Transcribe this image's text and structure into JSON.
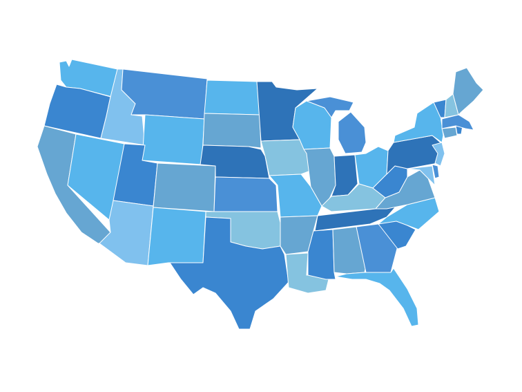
{
  "map": {
    "palette": {
      "navy": "#2e73b8",
      "blue": "#3a86d0",
      "mid": "#4a90d6",
      "sky": "#57b5ec",
      "light": "#80c1ee",
      "steel": "#66a6d2",
      "pale": "#85c3e0"
    },
    "states": [
      {
        "name": "washington",
        "color": "sky"
      },
      {
        "name": "oregon",
        "color": "blue"
      },
      {
        "name": "california",
        "color": "steel"
      },
      {
        "name": "idaho",
        "color": "light"
      },
      {
        "name": "nevada",
        "color": "sky"
      },
      {
        "name": "montana",
        "color": "mid"
      },
      {
        "name": "wyoming",
        "color": "sky"
      },
      {
        "name": "utah",
        "color": "blue"
      },
      {
        "name": "arizona",
        "color": "light"
      },
      {
        "name": "colorado",
        "color": "steel"
      },
      {
        "name": "new-mexico",
        "color": "sky"
      },
      {
        "name": "north-dakota",
        "color": "sky"
      },
      {
        "name": "south-dakota",
        "color": "steel"
      },
      {
        "name": "nebraska",
        "color": "navy"
      },
      {
        "name": "kansas",
        "color": "mid"
      },
      {
        "name": "oklahoma",
        "color": "pale"
      },
      {
        "name": "texas",
        "color": "blue"
      },
      {
        "name": "minnesota",
        "color": "navy"
      },
      {
        "name": "iowa",
        "color": "pale"
      },
      {
        "name": "missouri",
        "color": "sky"
      },
      {
        "name": "arkansas",
        "color": "steel"
      },
      {
        "name": "louisiana",
        "color": "pale"
      },
      {
        "name": "wisconsin",
        "color": "sky"
      },
      {
        "name": "illinois",
        "color": "steel"
      },
      {
        "name": "michigan",
        "color": "mid"
      },
      {
        "name": "indiana",
        "color": "navy"
      },
      {
        "name": "ohio",
        "color": "sky"
      },
      {
        "name": "kentucky",
        "color": "pale"
      },
      {
        "name": "tennessee",
        "color": "navy"
      },
      {
        "name": "mississippi",
        "color": "blue"
      },
      {
        "name": "alabama",
        "color": "steel"
      },
      {
        "name": "georgia",
        "color": "mid"
      },
      {
        "name": "florida",
        "color": "sky"
      },
      {
        "name": "south-carolina",
        "color": "blue"
      },
      {
        "name": "north-carolina",
        "color": "sky"
      },
      {
        "name": "virginia",
        "color": "steel"
      },
      {
        "name": "west-virginia",
        "color": "blue"
      },
      {
        "name": "maryland",
        "color": "light"
      },
      {
        "name": "delaware",
        "color": "mid"
      },
      {
        "name": "pennsylvania",
        "color": "navy"
      },
      {
        "name": "new-jersey",
        "color": "light"
      },
      {
        "name": "new-york",
        "color": "sky"
      },
      {
        "name": "connecticut",
        "color": "steel"
      },
      {
        "name": "rhode-island",
        "color": "blue"
      },
      {
        "name": "massachusetts",
        "color": "mid"
      },
      {
        "name": "vermont",
        "color": "blue"
      },
      {
        "name": "new-hampshire",
        "color": "pale"
      },
      {
        "name": "maine",
        "color": "steel"
      }
    ]
  }
}
